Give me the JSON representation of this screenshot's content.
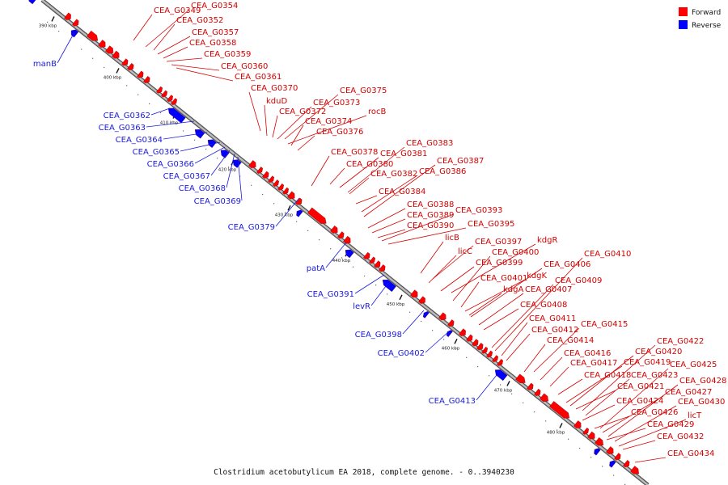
{
  "colors": {
    "forward": "#ff0000",
    "reverse": "#0000ff",
    "backbone": "#8a8a8a"
  },
  "legend": [
    {
      "label": "Forward",
      "color": "#ff0000"
    },
    {
      "label": "Reverse",
      "color": "#0000ff"
    }
  ],
  "caption": "Clostridium acetobutylicum EA 2018, complete genome. - 0..3940230",
  "ticks": [
    "390 kbp",
    "400 kbp",
    "410 kbp",
    "420 kbp",
    "430 kbp",
    "440 kbp",
    "450 kbp",
    "460 kbp",
    "470 kbp",
    "480 kbp"
  ],
  "genes_forward": [
    "CEA_G0349",
    "CEA_G0354",
    "CEA_G0352",
    "CEA_G0357",
    "CEA_G0358",
    "CEA_G0359",
    "CEA_G0360",
    "CEA_G0361",
    "CEA_G0370",
    "CEA_G0375",
    "kduD",
    "CEA_G0373",
    "CEA_G0372",
    "rocB",
    "CEA_G0374",
    "CEA_G0376",
    "CEA_G0383",
    "CEA_G0378",
    "CEA_G0381",
    "CEA_G0380",
    "CEA_G0387",
    "CEA_G0382",
    "CEA_G0386",
    "CEA_G0384",
    "CEA_G0388",
    "CEA_G0393",
    "CEA_G0389",
    "CEA_G0390",
    "CEA_G0395",
    "licB",
    "CEA_G0397",
    "kdgR",
    "licC",
    "CEA_G0400",
    "CEA_G0399",
    "CEA_G0410",
    "CEA_G0406",
    "kdgK",
    "CEA_G0401",
    "CEA_G0409",
    "kdgA",
    "CEA_G0407",
    "CEA_G0408",
    "CEA_G0411",
    "CEA_G0415",
    "CEA_G0412",
    "CEA_G0414",
    "CEA_G0422",
    "CEA_G0416",
    "CEA_G0420",
    "CEA_G0417",
    "CEA_G0419",
    "CEA_G0425",
    "CEA_G0418",
    "CEA_G0423",
    "CEA_G0421",
    "CEA_G0428",
    "CEA_G0427",
    "CEA_G0424",
    "CEA_G0430",
    "CEA_G0426",
    "licT",
    "CEA_G0429",
    "CEA_G0432",
    "CEA_G0434"
  ],
  "genes_reverse": [
    "manB",
    "CEA_G0362",
    "CEA_G0363",
    "CEA_G0364",
    "CEA_G0365",
    "CEA_G0366",
    "CEA_G0367",
    "CEA_G0368",
    "CEA_G0369",
    "CEA_G0379",
    "patA",
    "CEA_G0391",
    "levR",
    "CEA_G0398",
    "CEA_G0402",
    "CEA_G0413"
  ]
}
